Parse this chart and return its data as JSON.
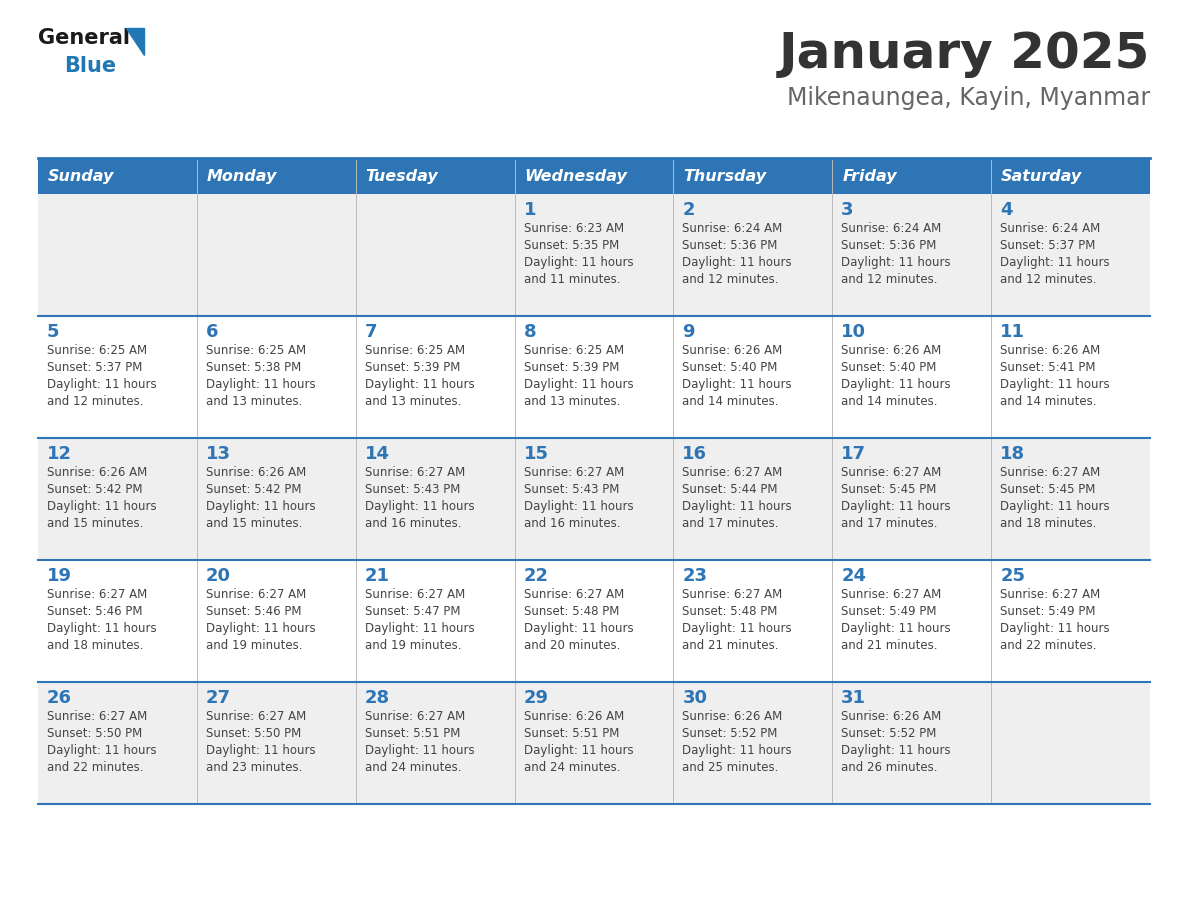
{
  "title": "January 2025",
  "subtitle": "Mikenaungea, Kayin, Myanmar",
  "days_of_week": [
    "Sunday",
    "Monday",
    "Tuesday",
    "Wednesday",
    "Thursday",
    "Friday",
    "Saturday"
  ],
  "header_bg": "#2E75B6",
  "header_text_color": "#FFFFFF",
  "cell_bg_odd": "#EFEFEF",
  "cell_bg_even": "#FFFFFF",
  "day_number_color": "#2E75B6",
  "text_color": "#444444",
  "divider_color": "#2E75B6",
  "title_color": "#333333",
  "subtitle_color": "#666666",
  "logo_general_color": "#1a1a1a",
  "logo_blue_color": "#2078B4",
  "calendar_data": [
    [
      {
        "day": null,
        "info": ""
      },
      {
        "day": null,
        "info": ""
      },
      {
        "day": null,
        "info": ""
      },
      {
        "day": 1,
        "info": "Sunrise: 6:23 AM\nSunset: 5:35 PM\nDaylight: 11 hours\nand 11 minutes."
      },
      {
        "day": 2,
        "info": "Sunrise: 6:24 AM\nSunset: 5:36 PM\nDaylight: 11 hours\nand 12 minutes."
      },
      {
        "day": 3,
        "info": "Sunrise: 6:24 AM\nSunset: 5:36 PM\nDaylight: 11 hours\nand 12 minutes."
      },
      {
        "day": 4,
        "info": "Sunrise: 6:24 AM\nSunset: 5:37 PM\nDaylight: 11 hours\nand 12 minutes."
      }
    ],
    [
      {
        "day": 5,
        "info": "Sunrise: 6:25 AM\nSunset: 5:37 PM\nDaylight: 11 hours\nand 12 minutes."
      },
      {
        "day": 6,
        "info": "Sunrise: 6:25 AM\nSunset: 5:38 PM\nDaylight: 11 hours\nand 13 minutes."
      },
      {
        "day": 7,
        "info": "Sunrise: 6:25 AM\nSunset: 5:39 PM\nDaylight: 11 hours\nand 13 minutes."
      },
      {
        "day": 8,
        "info": "Sunrise: 6:25 AM\nSunset: 5:39 PM\nDaylight: 11 hours\nand 13 minutes."
      },
      {
        "day": 9,
        "info": "Sunrise: 6:26 AM\nSunset: 5:40 PM\nDaylight: 11 hours\nand 14 minutes."
      },
      {
        "day": 10,
        "info": "Sunrise: 6:26 AM\nSunset: 5:40 PM\nDaylight: 11 hours\nand 14 minutes."
      },
      {
        "day": 11,
        "info": "Sunrise: 6:26 AM\nSunset: 5:41 PM\nDaylight: 11 hours\nand 14 minutes."
      }
    ],
    [
      {
        "day": 12,
        "info": "Sunrise: 6:26 AM\nSunset: 5:42 PM\nDaylight: 11 hours\nand 15 minutes."
      },
      {
        "day": 13,
        "info": "Sunrise: 6:26 AM\nSunset: 5:42 PM\nDaylight: 11 hours\nand 15 minutes."
      },
      {
        "day": 14,
        "info": "Sunrise: 6:27 AM\nSunset: 5:43 PM\nDaylight: 11 hours\nand 16 minutes."
      },
      {
        "day": 15,
        "info": "Sunrise: 6:27 AM\nSunset: 5:43 PM\nDaylight: 11 hours\nand 16 minutes."
      },
      {
        "day": 16,
        "info": "Sunrise: 6:27 AM\nSunset: 5:44 PM\nDaylight: 11 hours\nand 17 minutes."
      },
      {
        "day": 17,
        "info": "Sunrise: 6:27 AM\nSunset: 5:45 PM\nDaylight: 11 hours\nand 17 minutes."
      },
      {
        "day": 18,
        "info": "Sunrise: 6:27 AM\nSunset: 5:45 PM\nDaylight: 11 hours\nand 18 minutes."
      }
    ],
    [
      {
        "day": 19,
        "info": "Sunrise: 6:27 AM\nSunset: 5:46 PM\nDaylight: 11 hours\nand 18 minutes."
      },
      {
        "day": 20,
        "info": "Sunrise: 6:27 AM\nSunset: 5:46 PM\nDaylight: 11 hours\nand 19 minutes."
      },
      {
        "day": 21,
        "info": "Sunrise: 6:27 AM\nSunset: 5:47 PM\nDaylight: 11 hours\nand 19 minutes."
      },
      {
        "day": 22,
        "info": "Sunrise: 6:27 AM\nSunset: 5:48 PM\nDaylight: 11 hours\nand 20 minutes."
      },
      {
        "day": 23,
        "info": "Sunrise: 6:27 AM\nSunset: 5:48 PM\nDaylight: 11 hours\nand 21 minutes."
      },
      {
        "day": 24,
        "info": "Sunrise: 6:27 AM\nSunset: 5:49 PM\nDaylight: 11 hours\nand 21 minutes."
      },
      {
        "day": 25,
        "info": "Sunrise: 6:27 AM\nSunset: 5:49 PM\nDaylight: 11 hours\nand 22 minutes."
      }
    ],
    [
      {
        "day": 26,
        "info": "Sunrise: 6:27 AM\nSunset: 5:50 PM\nDaylight: 11 hours\nand 22 minutes."
      },
      {
        "day": 27,
        "info": "Sunrise: 6:27 AM\nSunset: 5:50 PM\nDaylight: 11 hours\nand 23 minutes."
      },
      {
        "day": 28,
        "info": "Sunrise: 6:27 AM\nSunset: 5:51 PM\nDaylight: 11 hours\nand 24 minutes."
      },
      {
        "day": 29,
        "info": "Sunrise: 6:26 AM\nSunset: 5:51 PM\nDaylight: 11 hours\nand 24 minutes."
      },
      {
        "day": 30,
        "info": "Sunrise: 6:26 AM\nSunset: 5:52 PM\nDaylight: 11 hours\nand 25 minutes."
      },
      {
        "day": 31,
        "info": "Sunrise: 6:26 AM\nSunset: 5:52 PM\nDaylight: 11 hours\nand 26 minutes."
      },
      {
        "day": null,
        "info": ""
      }
    ]
  ]
}
